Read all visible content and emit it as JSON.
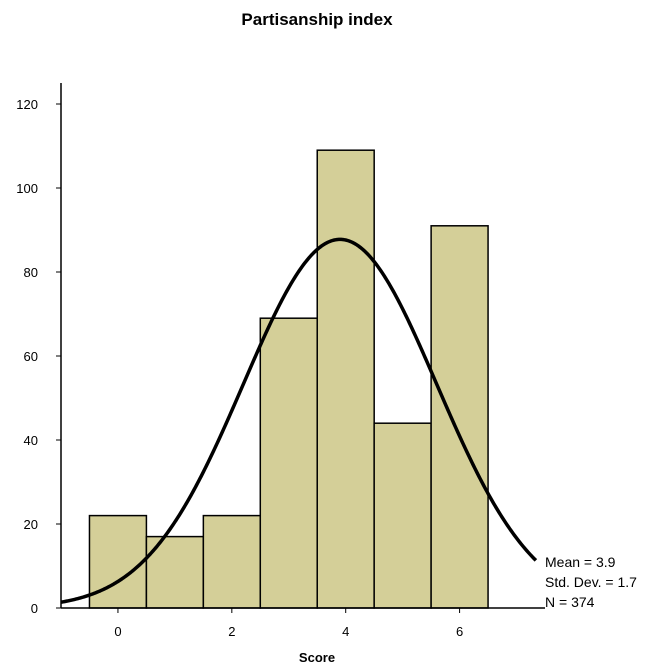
{
  "chart_data": {
    "type": "bar",
    "title": "Partisanship index",
    "xlabel": "Score",
    "ylabel": "",
    "bin_width": 1,
    "categories": [
      0,
      1,
      2,
      3,
      4,
      5,
      6
    ],
    "values": [
      22,
      17,
      22,
      69,
      109,
      44,
      91
    ],
    "xlim": [
      -1,
      7.5
    ],
    "ylim": [
      0,
      125
    ],
    "xticks": [
      0,
      2,
      4,
      6
    ],
    "yticks": [
      0,
      20,
      40,
      60,
      80,
      100,
      120
    ],
    "grid": false,
    "legend": "none",
    "normal_curve": {
      "mean": 3.9,
      "std": 1.7,
      "n": 374
    },
    "stats_lines": [
      "Mean = 3.9",
      "Std. Dev. = 1.7",
      "N = 374"
    ]
  },
  "colors": {
    "bar_fill": "#d4cf98",
    "bar_stroke": "#000000",
    "curve": "#000000",
    "axis": "#000000"
  }
}
